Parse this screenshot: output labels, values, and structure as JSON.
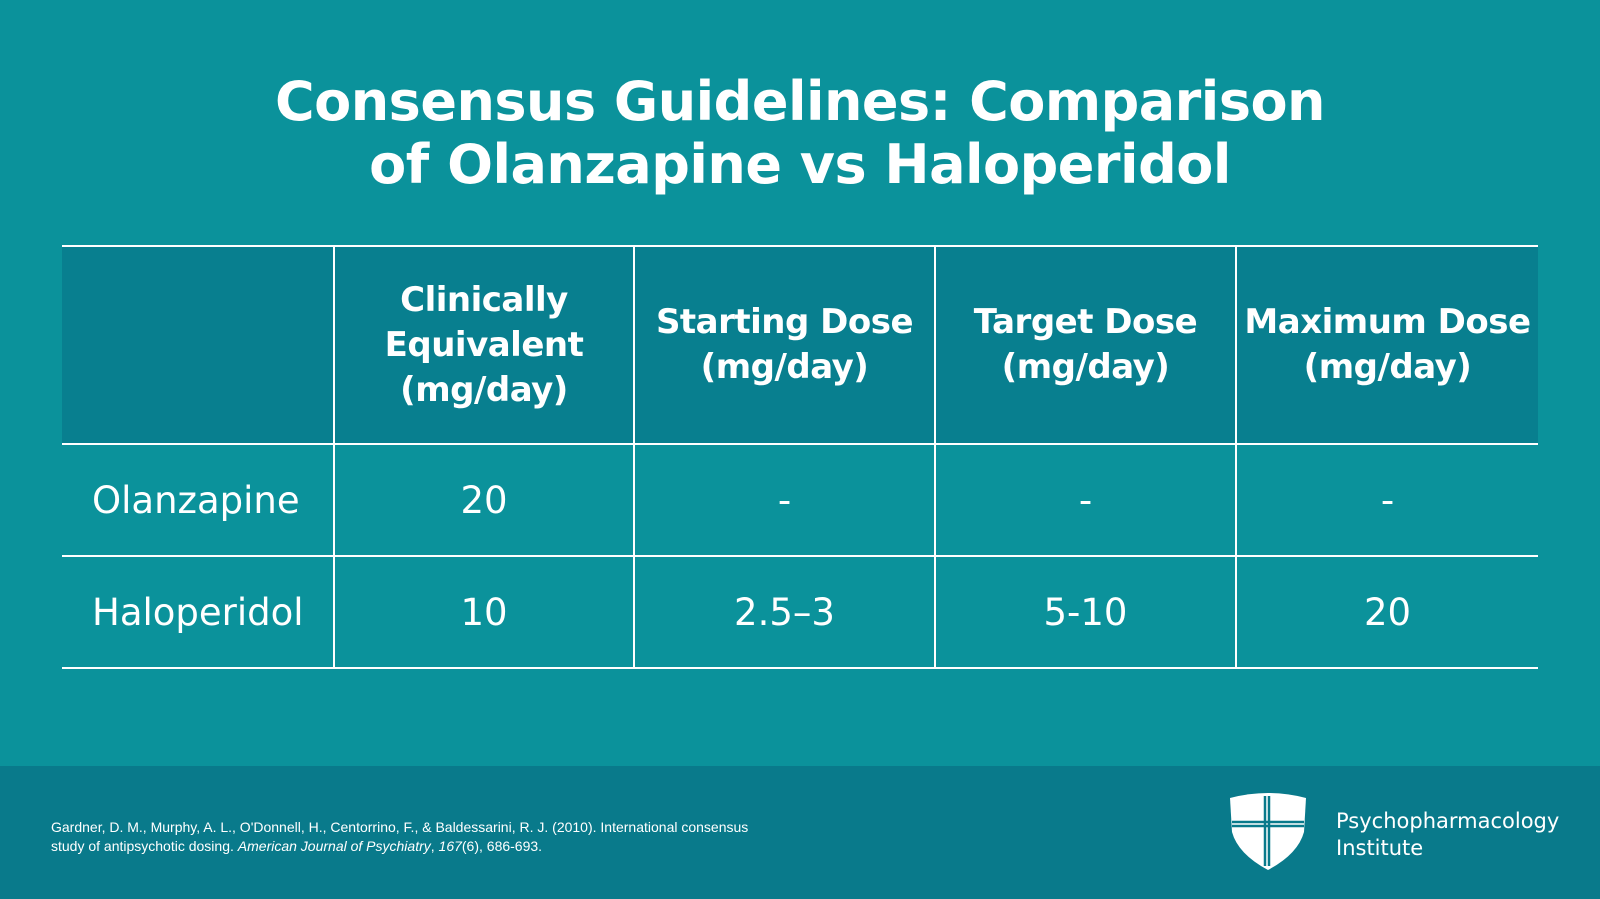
{
  "header": {
    "title_lines": [
      "Consensus Guidelines: Comparison",
      "of Olanzapine vs Haloperidol"
    ]
  },
  "table": {
    "columns": [
      [
        "Clinically",
        "Equivalent",
        "(mg/day)"
      ],
      [
        "Starting Dose",
        "(mg/day)"
      ],
      [
        "Target Dose",
        "(mg/day)"
      ],
      [
        "Maximum Dose",
        "(mg/day)"
      ]
    ],
    "rows": [
      {
        "label": "Olanzapine",
        "cells": [
          "20",
          "-",
          "-",
          "-"
        ]
      },
      {
        "label": "Haloperidol",
        "cells": [
          "10",
          "2.5–3",
          "5-10",
          "20"
        ]
      }
    ]
  },
  "footer": {
    "citation": [
      {
        "text": "Gardner, D. M., Murphy, A. L., O'Donnell, H., Centorrino, F., & Baldessarini, R. J. (2010). International consensus study of antipsychotic dosing. ",
        "italic": false
      },
      {
        "text": "American Journal of Psychiatry",
        "italic": true
      },
      {
        "text": ", ",
        "italic": false
      },
      {
        "text": "167",
        "italic": true
      },
      {
        "text": "(6), 686-693.",
        "italic": false
      }
    ],
    "logo_lines": [
      "Psychopharmacology",
      "Institute"
    ]
  }
}
